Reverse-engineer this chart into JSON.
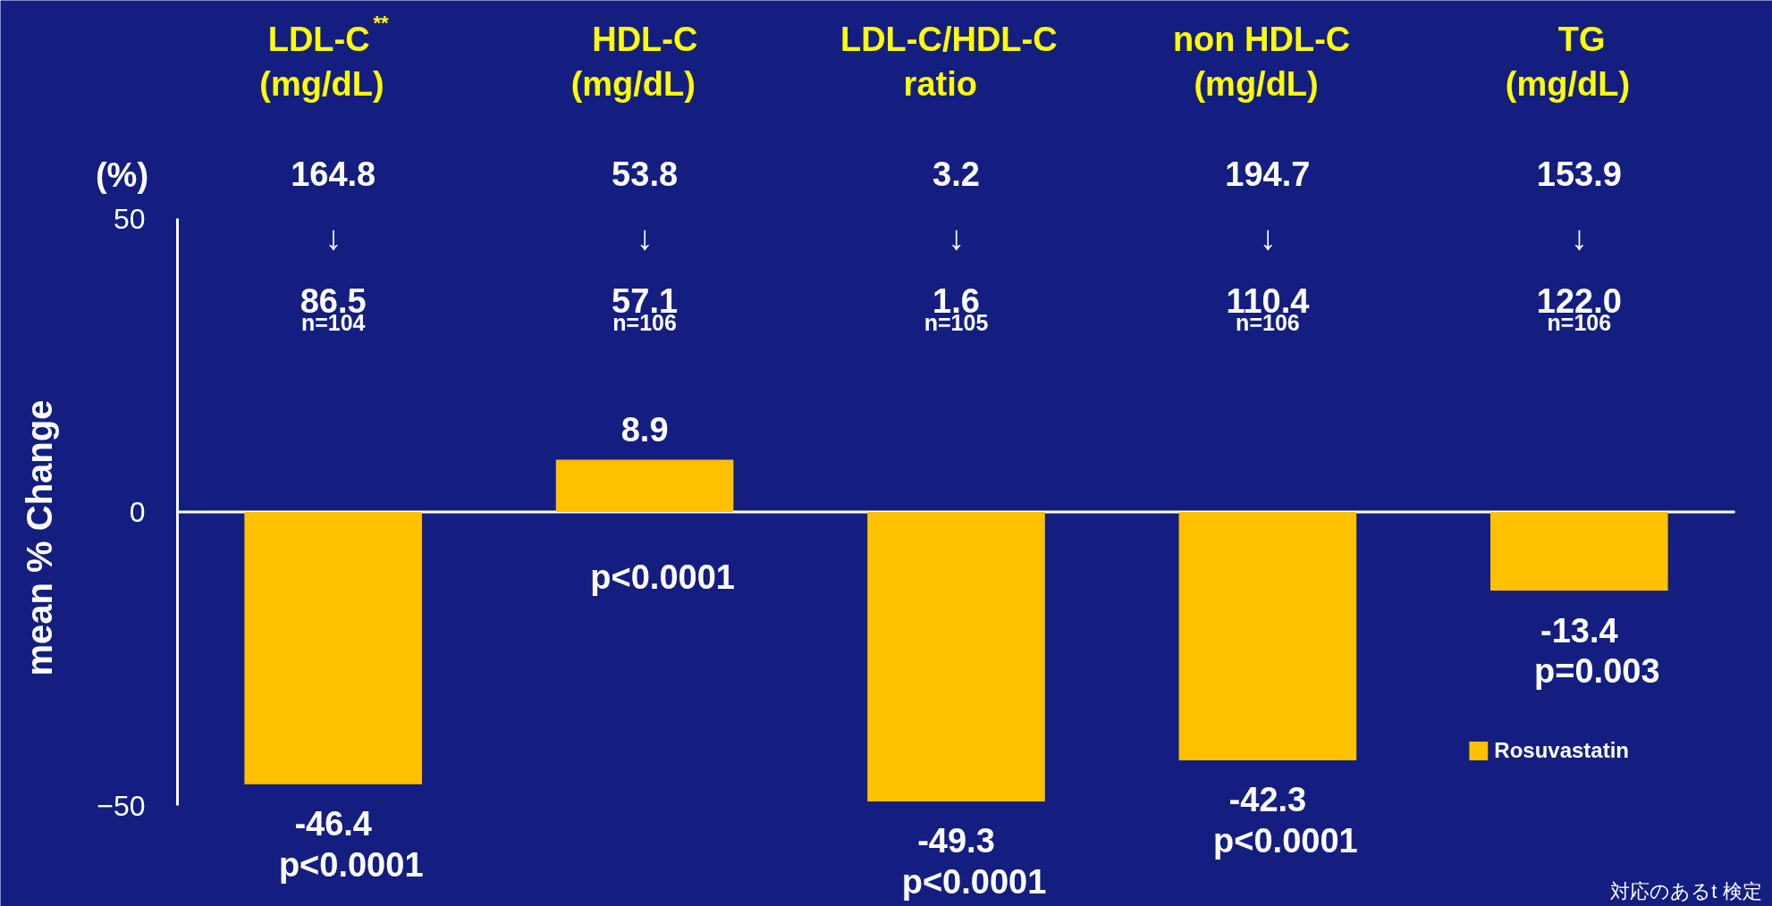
{
  "chart_data": {
    "type": "bar",
    "ylabel": "mean % Change",
    "categories": [
      "LDL-C$^{**}$\n(mg/dL)",
      "HDL-C\n(mg/dL)",
      "LDL-C/HDL-C\nratio",
      "non HDL-C\n(mg/dL)",
      "TG\n(mg/dL)"
    ],
    "series": [
      {
        "name": "Rosuvastatin",
        "color": "#ffc000",
        "values": [
          -46.4,
          8.9,
          -49.3,
          -42.3,
          -13.4
        ]
      }
    ],
    "ylim": [
      -50,
      50
    ],
    "yticks": [
      -50,
      0,
      50
    ],
    "data_labels": true,
    "legend": "bottom right",
    "annotations": [
      "(%)",
      "164.8\n↓\n86.5",
      "53.8\n↓\n57.1",
      "3.2\n↓\n1.6",
      "194.7\n↓\n110.4",
      "153.9\n↓\n122.0",
      "n=104",
      "n=106",
      "n=105",
      "n=106",
      "n=106",
      "p<0.0001",
      "p<0.0001",
      "p<0.0001",
      "p<0.0001",
      "p=0.003",
      "対応のあるt 検定"
    ]
  }
}
